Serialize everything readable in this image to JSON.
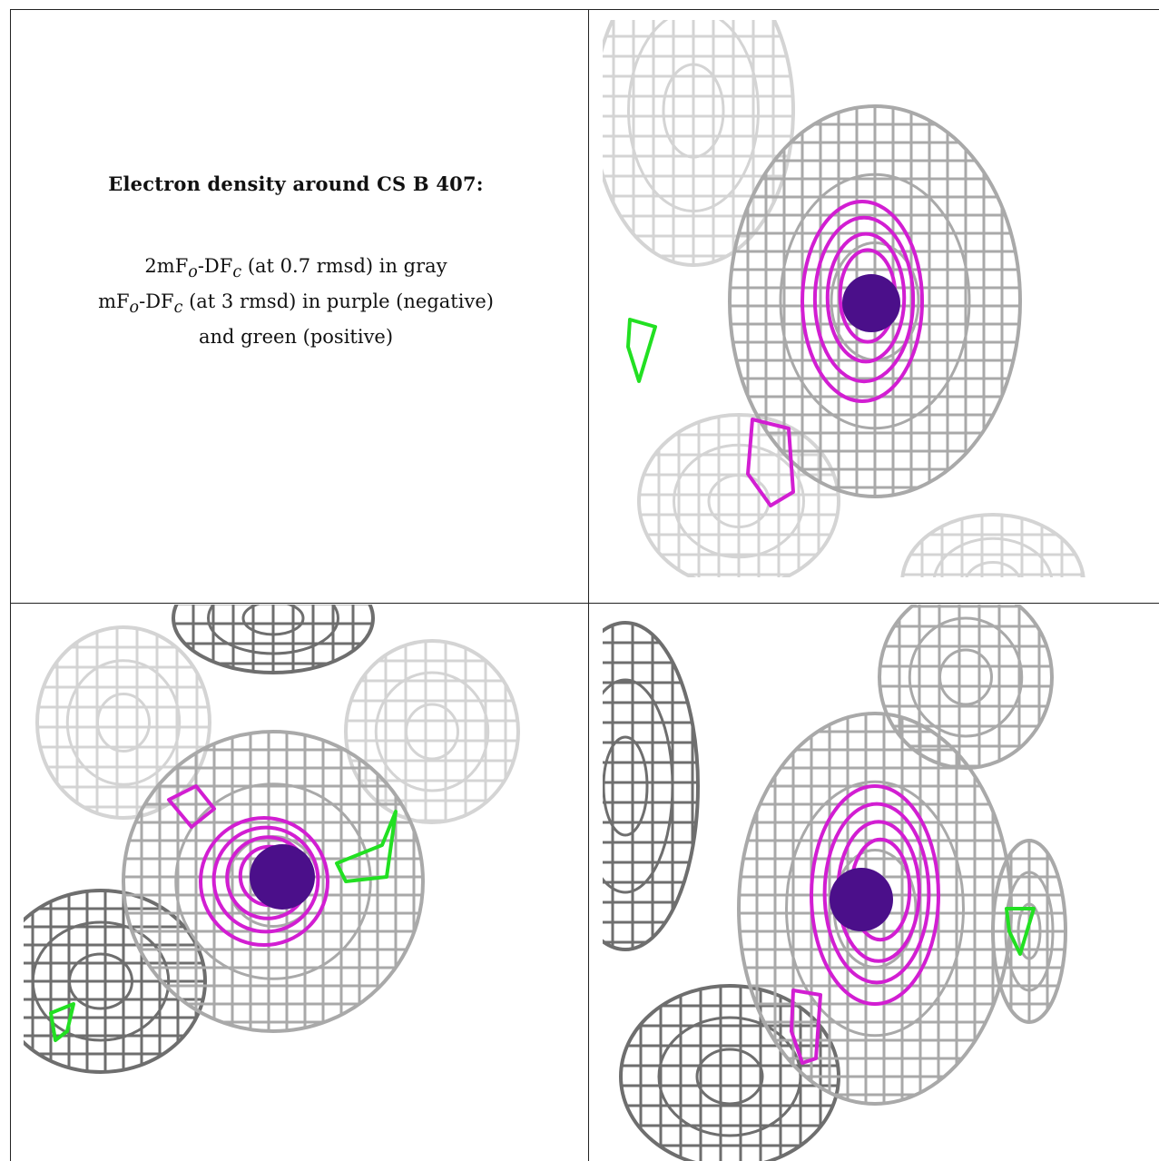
{
  "caption": {
    "title": "Electron density around CS B 407:",
    "line1_main": "2mF",
    "line1_sub1": "o",
    "line1_mid": "-DF",
    "line1_sub2": "c",
    "line1_tail": " (at 0.7 rmsd) in gray",
    "line2_main": "mF",
    "line2_sub1": "o",
    "line2_mid": "-DF",
    "line2_sub2": "c",
    "line2_tail": " (at 3 rmsd) in purple (negative)",
    "line3": "and green (positive)"
  },
  "colors": {
    "gray_mesh": "#a9a9a9",
    "dark_mesh": "#6e6e6e",
    "light_mesh": "#d4d4d4",
    "purple_mesh": "#d21ed2",
    "green_mesh": "#22e022",
    "atom": "#4b0f8a",
    "border": "#222222"
  },
  "panels": [
    "view-top-right",
    "view-bottom-left",
    "view-bottom-right"
  ]
}
